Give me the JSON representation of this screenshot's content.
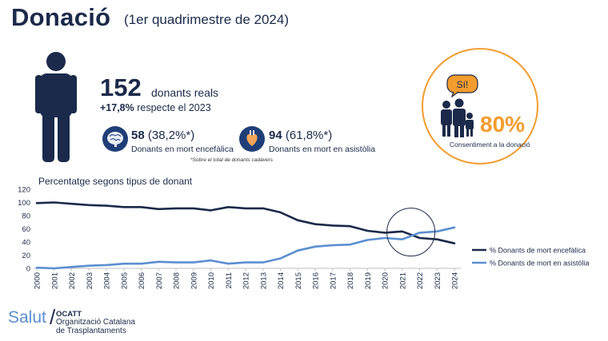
{
  "header": {
    "title": "Donació",
    "subtitle": "(1er quadrimestre de 2024)"
  },
  "donors": {
    "count": "152",
    "label": "donants reals",
    "change_value": "+17,8%",
    "change_text": "respecte el 2023"
  },
  "stats": {
    "encefalica": {
      "value": "58",
      "pct": "(38,2%*)",
      "label": "Donants en mort encefàlica",
      "icon": "brain-icon"
    },
    "asistolia": {
      "value": "94",
      "pct": "(61,8%*)",
      "label": "Donants en mort en asistòlia",
      "icon": "heart-icon"
    },
    "footnote": "*Sobre el total de donants cadàvers"
  },
  "consent": {
    "bubble": "Sí!",
    "pct": "80%",
    "label": "Consentiment a la donació",
    "color": "#f39c2e"
  },
  "logo": {
    "salut": "Salut",
    "slash": "/",
    "ocatt": "OCATT",
    "org_line1": "Organització Catalana",
    "org_line2": "de Trasplantaments"
  },
  "chart_data": {
    "type": "line",
    "title": "Percentatge segons tipus de donant",
    "xlabel": "",
    "ylabel": "",
    "ylim": [
      0,
      120
    ],
    "yticks": [
      0,
      20,
      40,
      60,
      80,
      100,
      120
    ],
    "x": [
      "2000",
      "2001",
      "2002",
      "2003",
      "2004",
      "2005",
      "2006",
      "2007",
      "2008",
      "2009",
      "2010",
      "2011",
      "2012",
      "2013",
      "2014",
      "2015",
      "2016",
      "2017",
      "2018",
      "2019",
      "2020",
      "2021",
      "2022",
      "2023",
      "2024"
    ],
    "series": [
      {
        "name": "% Donants de mort encefàlica",
        "color": "#1b2a4a",
        "values": [
          99,
          100,
          98,
          96,
          95,
          93,
          93,
          90,
          91,
          91,
          88,
          93,
          91,
          91,
          85,
          73,
          67,
          65,
          64,
          57,
          54,
          56,
          46,
          44,
          38
        ]
      },
      {
        "name": "% Donants de mort en asistòlia",
        "color": "#5b8fd0",
        "values": [
          1,
          0,
          2,
          4,
          5,
          7,
          7,
          10,
          9,
          9,
          12,
          7,
          9,
          9,
          15,
          27,
          33,
          35,
          36,
          43,
          46,
          44,
          54,
          56,
          62
        ]
      }
    ],
    "legend_position": "right",
    "grid": false
  }
}
